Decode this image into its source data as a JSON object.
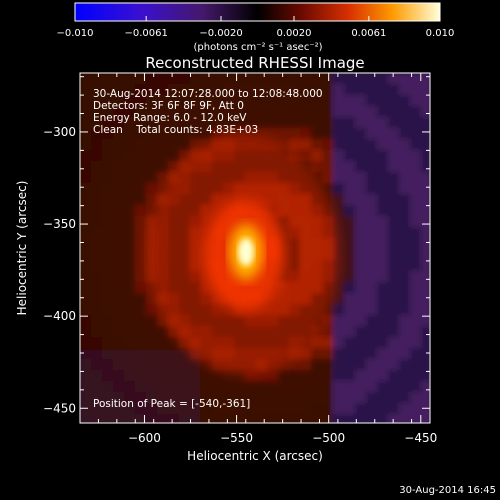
{
  "chart_data": {
    "type": "heatmap",
    "title": "Reconstructed RHESSI Image",
    "xlabel": "Heliocentric X (arcsec)",
    "ylabel": "Heliocentric Y (arcsec)",
    "xlim": [
      -635,
      -445
    ],
    "ylim": [
      -458,
      -268
    ],
    "x_ticks": [
      -600,
      -550,
      -500,
      -450
    ],
    "y_ticks": [
      -300,
      -350,
      -400,
      -450
    ],
    "x_tick_labels": [
      "−600",
      "−550",
      "−500",
      "−450"
    ],
    "y_tick_labels": [
      "−300",
      "−350",
      "−400",
      "−450"
    ],
    "colorbar": {
      "min": -0.01,
      "max": 0.01,
      "tick_labels": [
        "−0.010",
        "−0.0061",
        "−0.0020",
        "0.0020",
        "0.0061",
        "0.010"
      ],
      "unit_label": "(photons cm⁻² s⁻¹ asec⁻²)"
    },
    "annotations": {
      "time_range": "30-Aug-2014 12:07:28.000 to 12:08:48.000",
      "detectors": "Detectors: 3F 6F 8F 9F, Att 0",
      "energy": "Energy Range: 6.0 - 12.0 keV",
      "clean": "Clean    Total counts: 4.83E+03",
      "peak": "Position of Peak = [-540,-361]"
    },
    "peak": {
      "x": -540,
      "y": -361
    },
    "footer_timestamp": "30-Aug-2014 16:45"
  }
}
